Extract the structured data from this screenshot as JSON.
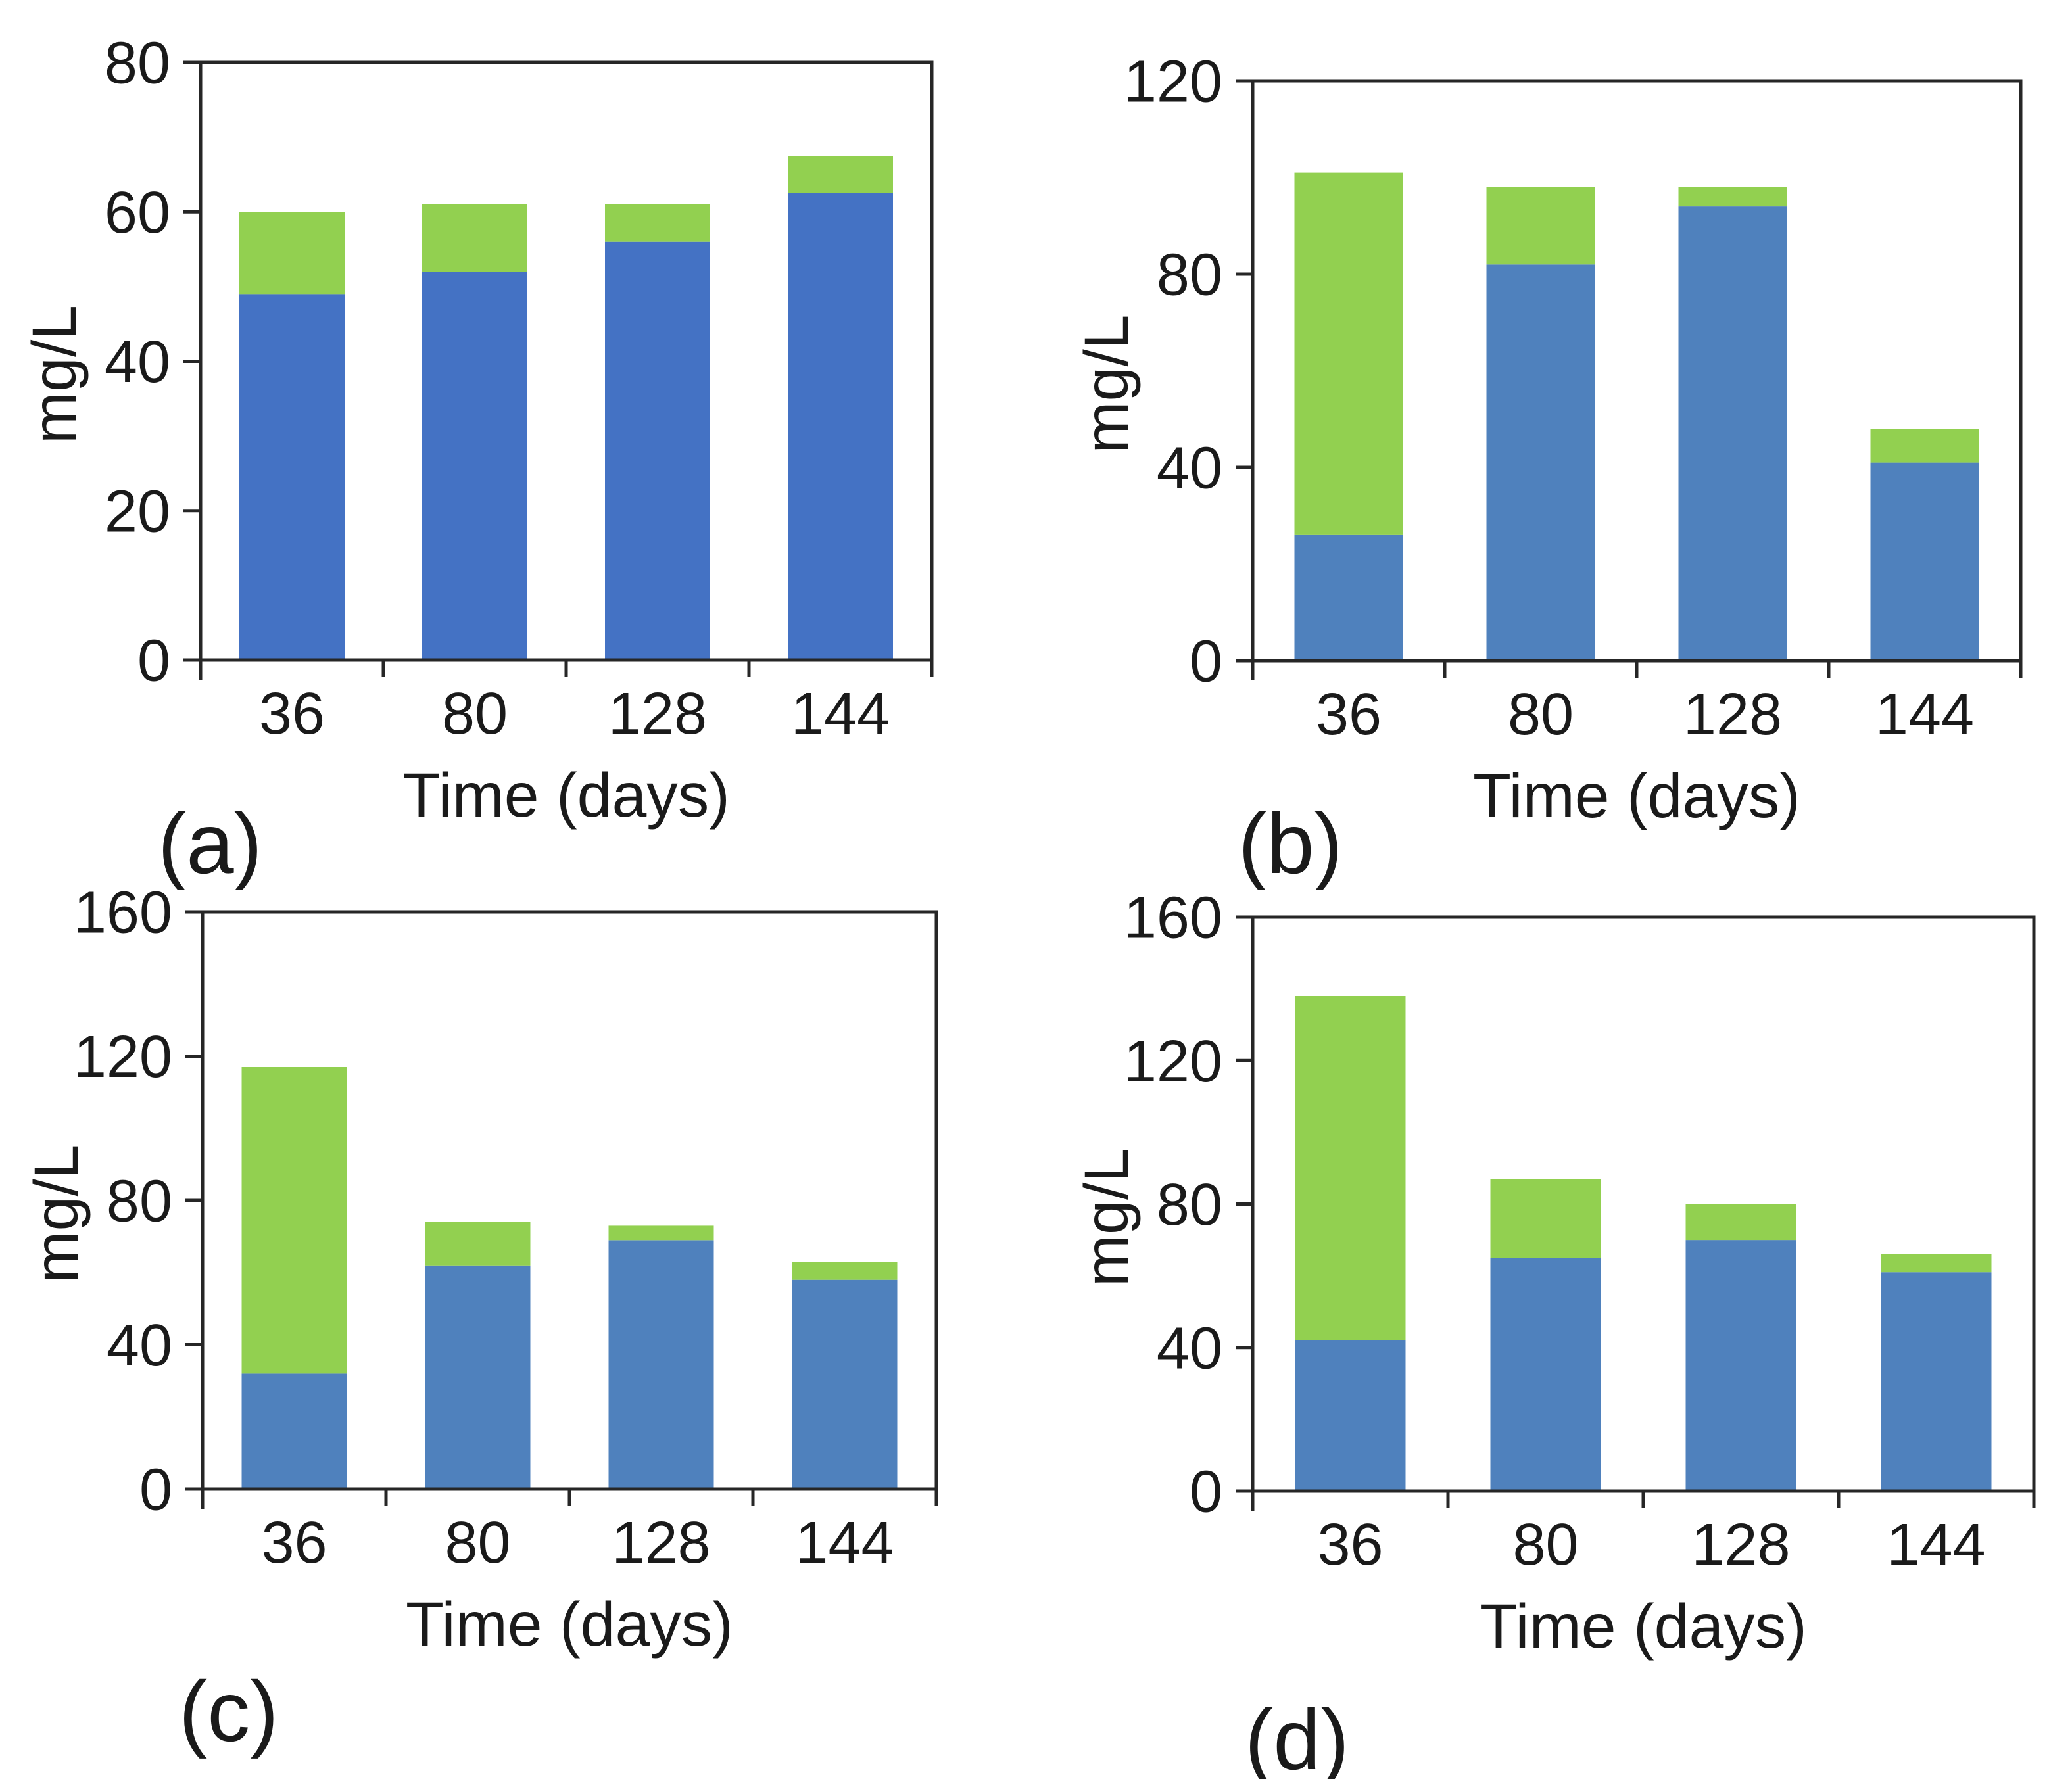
{
  "figure": {
    "background": "#ffffff",
    "axis_color": "#262626",
    "text_color": "#1a1a1a"
  },
  "chart_data": [
    {
      "type": "bar",
      "stacked": true,
      "panel_label": "(a)",
      "title": "",
      "xlabel": "Time (days)",
      "ylabel": "mg/L",
      "categories": [
        "36",
        "80",
        "128",
        "144"
      ],
      "ylim": [
        0,
        80
      ],
      "yticks": [
        0,
        20,
        40,
        60,
        80
      ],
      "grid": false,
      "legend": "none",
      "series": [
        {
          "name": "blue-segment",
          "color": "#4472C4",
          "values": [
            49,
            52,
            56,
            62.5
          ]
        },
        {
          "name": "green-segment",
          "color": "#92D050",
          "values": [
            11,
            9,
            5,
            5
          ]
        }
      ]
    },
    {
      "type": "bar",
      "stacked": true,
      "panel_label": "(b)",
      "title": "",
      "xlabel": "Time (days)",
      "ylabel": "mg/L",
      "categories": [
        "36",
        "80",
        "128",
        "144"
      ],
      "ylim": [
        0,
        120
      ],
      "yticks": [
        0,
        40,
        80,
        120
      ],
      "grid": false,
      "legend": "none",
      "series": [
        {
          "name": "blue-segment",
          "color": "#4F81BD",
          "values": [
            26,
            82,
            94,
            41
          ]
        },
        {
          "name": "green-segment",
          "color": "#92D050",
          "values": [
            75,
            16,
            4,
            7
          ]
        }
      ]
    },
    {
      "type": "bar",
      "stacked": true,
      "panel_label": "(c)",
      "title": "",
      "xlabel": "Time (days)",
      "ylabel": "mg/L",
      "categories": [
        "36",
        "80",
        "128",
        "144"
      ],
      "ylim": [
        0,
        160
      ],
      "yticks": [
        0,
        40,
        80,
        120,
        160
      ],
      "grid": false,
      "legend": "none",
      "series": [
        {
          "name": "blue-segment",
          "color": "#4F81BD",
          "values": [
            32,
            62,
            69,
            58
          ]
        },
        {
          "name": "green-segment",
          "color": "#92D050",
          "values": [
            85,
            12,
            4,
            5
          ]
        }
      ]
    },
    {
      "type": "bar",
      "stacked": true,
      "panel_label": "(d)",
      "title": "",
      "xlabel": "Time (days)",
      "ylabel": "mg/L",
      "categories": [
        "36",
        "80",
        "128",
        "144"
      ],
      "ylim": [
        0,
        160
      ],
      "yticks": [
        0,
        40,
        80,
        120,
        160
      ],
      "grid": false,
      "legend": "none",
      "series": [
        {
          "name": "blue-segment",
          "color": "#4F81BD",
          "values": [
            42,
            65,
            70,
            61
          ]
        },
        {
          "name": "green-segment",
          "color": "#92D050",
          "values": [
            96,
            22,
            10,
            5
          ]
        }
      ]
    }
  ]
}
